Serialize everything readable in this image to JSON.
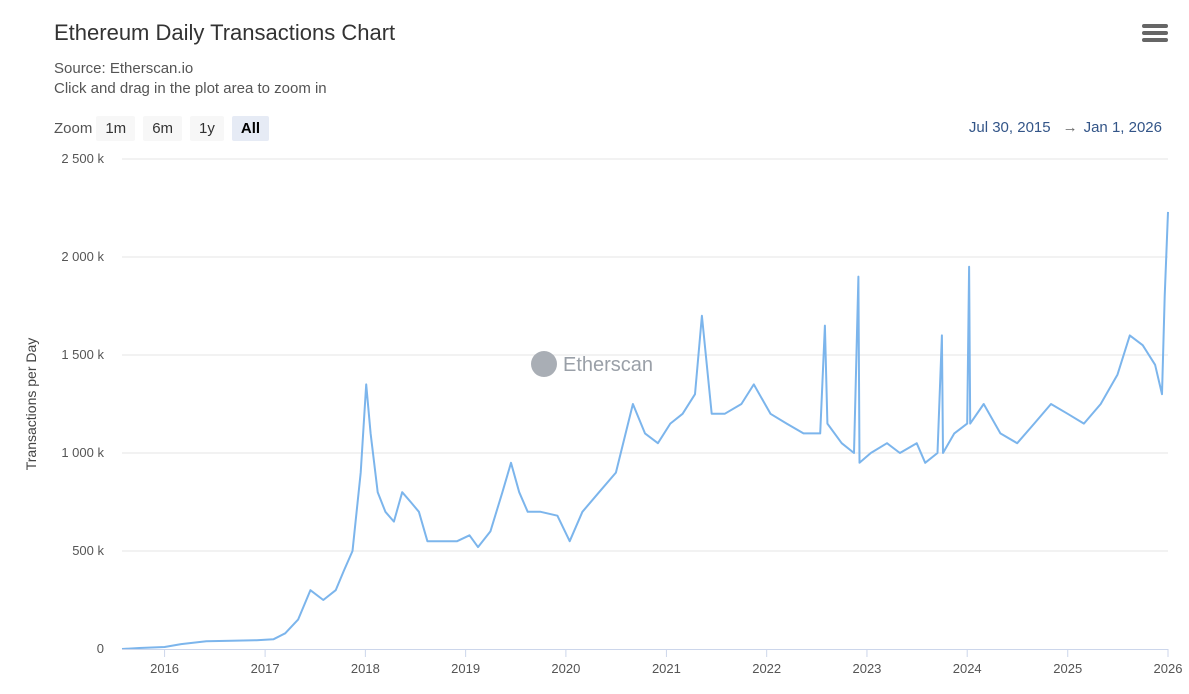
{
  "header": {
    "title": "Ethereum Daily Transactions Chart",
    "source": "Source: Etherscan.io",
    "hint": "Click and drag in the plot area to zoom in"
  },
  "zoom": {
    "label": "Zoom",
    "buttons": [
      "1m",
      "6m",
      "1y",
      "All"
    ],
    "active": "All"
  },
  "range": {
    "from": "Jul 30, 2015",
    "to": "Jan 1, 2026"
  },
  "watermark": "Etherscan",
  "colors": {
    "series": "#7cb5ec",
    "grid": "#e6e6e6",
    "axis": "#ccd6eb"
  },
  "chart_data": {
    "type": "line",
    "ylabel": "Transactions per Day",
    "xlabel": "",
    "ylim": [
      0,
      2500000
    ],
    "xlim": [
      "2015-07-30",
      "2026-01-01"
    ],
    "y_ticks": [
      {
        "value": 0,
        "label": "0"
      },
      {
        "value": 500000,
        "label": "500 k"
      },
      {
        "value": 1000000,
        "label": "1 000 k"
      },
      {
        "value": 1500000,
        "label": "1 500 k"
      },
      {
        "value": 2000000,
        "label": "2 000 k"
      },
      {
        "value": 2500000,
        "label": "2 500 k"
      }
    ],
    "x_ticks": [
      {
        "date": "2016-01-01",
        "label": "2016"
      },
      {
        "date": "2017-01-01",
        "label": "2017"
      },
      {
        "date": "2018-01-01",
        "label": "2018"
      },
      {
        "date": "2019-01-01",
        "label": "2019"
      },
      {
        "date": "2020-01-01",
        "label": "2020"
      },
      {
        "date": "2021-01-01",
        "label": "2021"
      },
      {
        "date": "2022-01-01",
        "label": "2022"
      },
      {
        "date": "2023-01-01",
        "label": "2023"
      },
      {
        "date": "2024-01-01",
        "label": "2024"
      },
      {
        "date": "2025-01-01",
        "label": "2025"
      },
      {
        "date": "2026-01-01",
        "label": "2026"
      }
    ],
    "grid": true,
    "legend": "none",
    "series": [
      {
        "name": "",
        "points": [
          [
            "2015-07-30",
            0
          ],
          [
            "2015-10-01",
            5000
          ],
          [
            "2016-01-01",
            10000
          ],
          [
            "2016-03-01",
            25000
          ],
          [
            "2016-06-01",
            40000
          ],
          [
            "2016-09-01",
            42000
          ],
          [
            "2016-12-01",
            45000
          ],
          [
            "2017-02-01",
            50000
          ],
          [
            "2017-03-15",
            80000
          ],
          [
            "2017-05-01",
            150000
          ],
          [
            "2017-06-15",
            300000
          ],
          [
            "2017-08-01",
            250000
          ],
          [
            "2017-09-15",
            300000
          ],
          [
            "2017-10-15",
            400000
          ],
          [
            "2017-11-15",
            500000
          ],
          [
            "2017-12-15",
            900000
          ],
          [
            "2018-01-04",
            1350000
          ],
          [
            "2018-01-20",
            1100000
          ],
          [
            "2018-02-15",
            800000
          ],
          [
            "2018-03-15",
            700000
          ],
          [
            "2018-04-15",
            650000
          ],
          [
            "2018-05-15",
            800000
          ],
          [
            "2018-06-15",
            750000
          ],
          [
            "2018-07-15",
            700000
          ],
          [
            "2018-08-15",
            550000
          ],
          [
            "2018-10-01",
            550000
          ],
          [
            "2018-12-01",
            550000
          ],
          [
            "2019-01-15",
            580000
          ],
          [
            "2019-02-15",
            520000
          ],
          [
            "2019-04-01",
            600000
          ],
          [
            "2019-05-15",
            800000
          ],
          [
            "2019-06-15",
            950000
          ],
          [
            "2019-07-15",
            800000
          ],
          [
            "2019-08-15",
            700000
          ],
          [
            "2019-10-01",
            700000
          ],
          [
            "2019-12-01",
            680000
          ],
          [
            "2020-01-15",
            550000
          ],
          [
            "2020-03-01",
            700000
          ],
          [
            "2020-05-01",
            800000
          ],
          [
            "2020-07-01",
            900000
          ],
          [
            "2020-09-01",
            1250000
          ],
          [
            "2020-10-15",
            1100000
          ],
          [
            "2020-12-01",
            1050000
          ],
          [
            "2021-01-15",
            1150000
          ],
          [
            "2021-03-01",
            1200000
          ],
          [
            "2021-04-15",
            1300000
          ],
          [
            "2021-05-10",
            1700000
          ],
          [
            "2021-06-15",
            1200000
          ],
          [
            "2021-08-01",
            1200000
          ],
          [
            "2021-10-01",
            1250000
          ],
          [
            "2021-11-15",
            1350000
          ],
          [
            "2022-01-15",
            1200000
          ],
          [
            "2022-03-15",
            1150000
          ],
          [
            "2022-05-15",
            1100000
          ],
          [
            "2022-07-15",
            1100000
          ],
          [
            "2022-08-01",
            1650000
          ],
          [
            "2022-08-10",
            1150000
          ],
          [
            "2022-10-01",
            1050000
          ],
          [
            "2022-11-15",
            1000000
          ],
          [
            "2022-12-01",
            1900000
          ],
          [
            "2022-12-05",
            950000
          ],
          [
            "2023-01-15",
            1000000
          ],
          [
            "2023-03-15",
            1050000
          ],
          [
            "2023-05-01",
            1000000
          ],
          [
            "2023-07-01",
            1050000
          ],
          [
            "2023-08-01",
            950000
          ],
          [
            "2023-09-15",
            1000000
          ],
          [
            "2023-10-01",
            1600000
          ],
          [
            "2023-10-05",
            1000000
          ],
          [
            "2023-11-15",
            1100000
          ],
          [
            "2024-01-01",
            1150000
          ],
          [
            "2024-01-08",
            1950000
          ],
          [
            "2024-01-12",
            1150000
          ],
          [
            "2024-03-01",
            1250000
          ],
          [
            "2024-05-01",
            1100000
          ],
          [
            "2024-07-01",
            1050000
          ],
          [
            "2024-09-01",
            1150000
          ],
          [
            "2024-11-01",
            1250000
          ],
          [
            "2025-01-01",
            1200000
          ],
          [
            "2025-03-01",
            1150000
          ],
          [
            "2025-05-01",
            1250000
          ],
          [
            "2025-07-01",
            1400000
          ],
          [
            "2025-08-15",
            1600000
          ],
          [
            "2025-10-01",
            1550000
          ],
          [
            "2025-11-15",
            1450000
          ],
          [
            "2025-12-10",
            1300000
          ],
          [
            "2025-12-20",
            1800000
          ],
          [
            "2026-01-01",
            2230000
          ]
        ]
      }
    ]
  }
}
